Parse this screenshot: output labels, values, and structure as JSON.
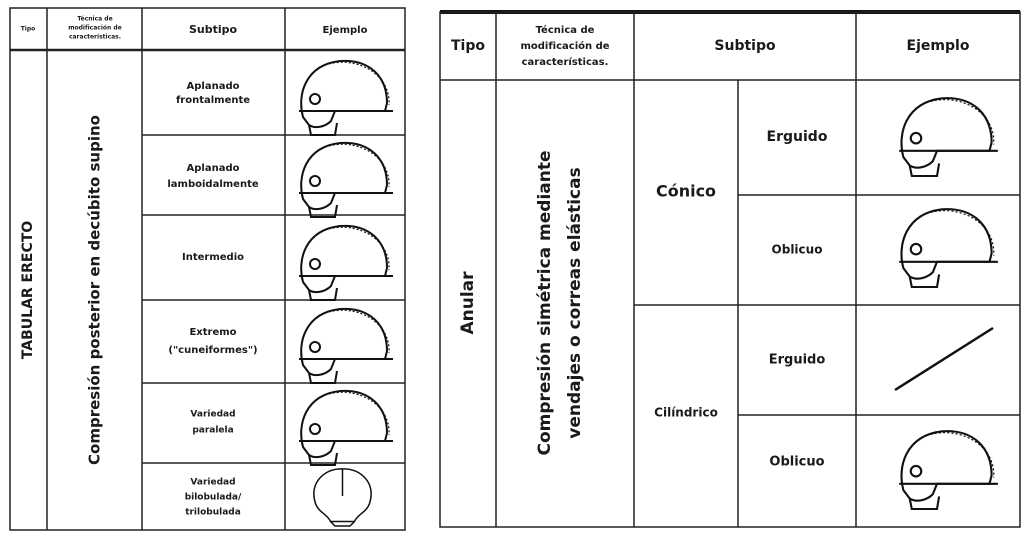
{
  "left_table": {
    "header": [
      [
        "Tipo"
      ],
      [
        "Técnica de",
        "modificación de",
        "características."
      ],
      [
        "Subtipo"
      ],
      [
        "Ejemplo"
      ]
    ],
    "tipo": "TABULAR ERECTO",
    "tecnica": "Compresión posterior en decúbito supino",
    "subtipos": [
      [
        "Aplanado",
        "frontalmente"
      ],
      [
        "Aplanado",
        "lamboidalmente"
      ],
      [
        "Intermedio"
      ],
      [
        "Extremo",
        "(\"cuneiformes\")"
      ],
      [
        "Variedad",
        "paralela"
      ],
      [
        "Variedad",
        "bilobulada/",
        "trilobulada"
      ]
    ]
  },
  "right_table": {
    "header": [
      [
        "Tipo"
      ],
      [
        "Técnica de",
        "modificación de",
        "características."
      ],
      [
        "Subtipo"
      ],
      [
        "Ejemplo"
      ]
    ],
    "tipo": "Anular",
    "tecnica": [
      "Compresión simétrica mediante",
      "vendajes o correas elásticas"
    ],
    "groups": [
      {
        "name": "Cónico",
        "subtipos": [
          "Erguido",
          "Oblicuo"
        ]
      },
      {
        "name": "Cilíndrico",
        "subtipos": [
          "Erguido",
          "Oblicuo"
        ]
      }
    ]
  }
}
